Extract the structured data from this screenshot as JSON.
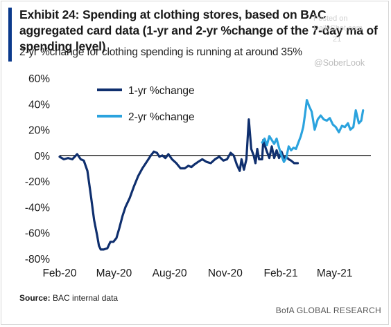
{
  "header": {
    "title": "Exhibit 24: Spending at clothing stores, based on BAC aggregated card data (1-yr and 2-yr %change of the 7-day ma of spending level)",
    "subtitle": "2-yr %change for clothing spending is running at around 35%"
  },
  "watermark": {
    "posted": "Posted on",
    "site": "DailyShot.com",
    "date": "21",
    "handle": "@SoberLook"
  },
  "footer": {
    "source_label": "Source:",
    "source_text": "BAC internal data",
    "brand": "BofA GLOBAL RESEARCH"
  },
  "colors": {
    "accent": "#0b3a8c",
    "series1": "#0f2f6e",
    "series2": "#2ba3de"
  },
  "chart_data": {
    "type": "line",
    "xlabel": "",
    "ylabel": "",
    "ylim": [
      -80,
      60
    ],
    "yticks": [
      -80,
      -60,
      -40,
      -20,
      0,
      20,
      40,
      60
    ],
    "ytick_labels": [
      "-80%",
      "-60%",
      "-40%",
      "-20%",
      "0%",
      "20%",
      "40%",
      "60%"
    ],
    "xticks": [
      "2020-02-01",
      "2020-05-01",
      "2020-08-01",
      "2020-11-01",
      "2021-02-01",
      "2021-05-01"
    ],
    "xtick_labels": [
      "Feb-20",
      "May-20",
      "Aug-20",
      "Nov-20",
      "Feb-21",
      "May-21"
    ],
    "xlim": [
      "2020-02-01",
      "2021-06-30"
    ],
    "legend_position": "top-left",
    "zero_line": true,
    "series": [
      {
        "name": "1-yr %change",
        "color": "#0f2f6e",
        "x": [
          "2020-02-01",
          "2020-02-08",
          "2020-02-15",
          "2020-02-22",
          "2020-03-01",
          "2020-03-07",
          "2020-03-12",
          "2020-03-18",
          "2020-03-24",
          "2020-03-29",
          "2020-04-03",
          "2020-04-06",
          "2020-04-09",
          "2020-04-14",
          "2020-04-20",
          "2020-04-25",
          "2020-04-30",
          "2020-05-05",
          "2020-05-10",
          "2020-05-15",
          "2020-05-20",
          "2020-05-27",
          "2020-06-03",
          "2020-06-10",
          "2020-06-17",
          "2020-06-24",
          "2020-07-01",
          "2020-07-06",
          "2020-07-11",
          "2020-07-15",
          "2020-07-20",
          "2020-07-25",
          "2020-07-30",
          "2020-08-05",
          "2020-08-12",
          "2020-08-19",
          "2020-08-26",
          "2020-09-01",
          "2020-09-06",
          "2020-09-11",
          "2020-09-17",
          "2020-09-24",
          "2020-10-01",
          "2020-10-08",
          "2020-10-15",
          "2020-10-22",
          "2020-10-29",
          "2020-11-04",
          "2020-11-10",
          "2020-11-15",
          "2020-11-20",
          "2020-11-25",
          "2020-11-28",
          "2020-12-02",
          "2020-12-06",
          "2020-12-10",
          "2020-12-14",
          "2020-12-18",
          "2020-12-21",
          "2020-12-24",
          "2020-12-27",
          "2021-01-01",
          "2021-01-03",
          "2021-01-06",
          "2021-01-09",
          "2021-01-13",
          "2021-01-17",
          "2021-01-21",
          "2021-01-25",
          "2021-01-29",
          "2021-02-02",
          "2021-02-06",
          "2021-02-10",
          "2021-02-14",
          "2021-02-18",
          "2021-02-23",
          "2021-03-01"
        ],
        "values": [
          -1,
          -3,
          -2,
          -3,
          1,
          -3,
          -4,
          -12,
          -32,
          -50,
          -62,
          -70,
          -73,
          -73,
          -72,
          -67,
          -67,
          -64,
          -56,
          -47,
          -40,
          -33,
          -24,
          -16,
          -10,
          -5,
          0,
          3,
          2,
          -1,
          0,
          -2,
          1,
          -3,
          -6,
          -10,
          -10,
          -8,
          -9,
          -7,
          -5,
          -3,
          -5,
          -6,
          -3,
          -1,
          -4,
          -3,
          2,
          0,
          -7,
          -12,
          -3,
          -11,
          -3,
          28,
          5,
          0,
          -6,
          5,
          -3,
          -3,
          12,
          7,
          3,
          -2,
          7,
          -2,
          4,
          -2,
          3,
          -2,
          -1,
          -3,
          -4,
          -6,
          -6
        ]
      },
      {
        "name": "2-yr %change",
        "color": "#2ba3de",
        "x": [
          "2021-01-01",
          "2021-01-05",
          "2021-01-09",
          "2021-01-13",
          "2021-01-17",
          "2021-01-21",
          "2021-01-25",
          "2021-01-29",
          "2021-02-02",
          "2021-02-06",
          "2021-02-10",
          "2021-02-14",
          "2021-02-18",
          "2021-02-22",
          "2021-02-26",
          "2021-03-02",
          "2021-03-06",
          "2021-03-10",
          "2021-03-13",
          "2021-03-16",
          "2021-03-20",
          "2021-03-24",
          "2021-03-29",
          "2021-04-03",
          "2021-04-08",
          "2021-04-13",
          "2021-04-18",
          "2021-04-23",
          "2021-04-28",
          "2021-05-03",
          "2021-05-08",
          "2021-05-13",
          "2021-05-18",
          "2021-05-23",
          "2021-05-27",
          "2021-06-01",
          "2021-06-05",
          "2021-06-10",
          "2021-06-14",
          "2021-06-17"
        ],
        "values": [
          10,
          13,
          8,
          15,
          12,
          9,
          13,
          6,
          0,
          -5,
          -2,
          7,
          4,
          6,
          5,
          10,
          15,
          22,
          32,
          43,
          38,
          34,
          20,
          28,
          31,
          28,
          27,
          29,
          24,
          22,
          18,
          23,
          22,
          25,
          20,
          22,
          35,
          25,
          27,
          35
        ]
      }
    ]
  }
}
